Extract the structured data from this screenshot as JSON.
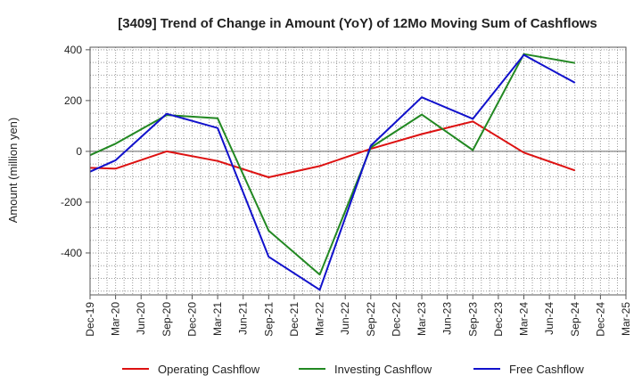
{
  "chart_data": {
    "type": "line",
    "title": "[3409]  Trend of Change in Amount (YoY) of 12Mo Moving Sum of Cashflows",
    "xlabel": "",
    "ylabel": "Amount (million yen)",
    "categories": [
      "Dec-19",
      "Mar-20",
      "Jun-20",
      "Sep-20",
      "Dec-20",
      "Mar-21",
      "Jun-21",
      "Sep-21",
      "Dec-21",
      "Mar-22",
      "Jun-22",
      "Sep-22",
      "Dec-22",
      "Mar-23",
      "Jun-23",
      "Sep-23",
      "Dec-23",
      "Mar-24",
      "Jun-24",
      "Sep-24",
      "Dec-24",
      "Mar-25"
    ],
    "ylim": [
      -565,
      410
    ],
    "yticks": [
      400,
      200,
      0,
      -200,
      -400
    ],
    "ytick_labels": [
      "400",
      "200",
      "0",
      "-200",
      "-400"
    ],
    "grid": true,
    "legend_position": "bottom",
    "series": [
      {
        "name": "Operating Cashflow",
        "color": "#dd1111",
        "values": [
          -65,
          -68,
          null,
          0,
          null,
          -38,
          null,
          -102,
          null,
          -58,
          null,
          10,
          null,
          68,
          null,
          118,
          null,
          -5,
          null,
          -75,
          null,
          null
        ]
      },
      {
        "name": "Investing Cashflow",
        "color": "#228822",
        "values": [
          -15,
          30,
          null,
          143,
          null,
          130,
          null,
          -312,
          null,
          -485,
          null,
          15,
          null,
          145,
          null,
          5,
          null,
          383,
          null,
          348,
          null,
          null
        ]
      },
      {
        "name": "Free Cashflow",
        "color": "#1111cc",
        "values": [
          -80,
          -35,
          null,
          148,
          null,
          92,
          null,
          -415,
          null,
          -545,
          null,
          22,
          null,
          213,
          null,
          128,
          null,
          380,
          null,
          270,
          null,
          null
        ]
      }
    ]
  }
}
